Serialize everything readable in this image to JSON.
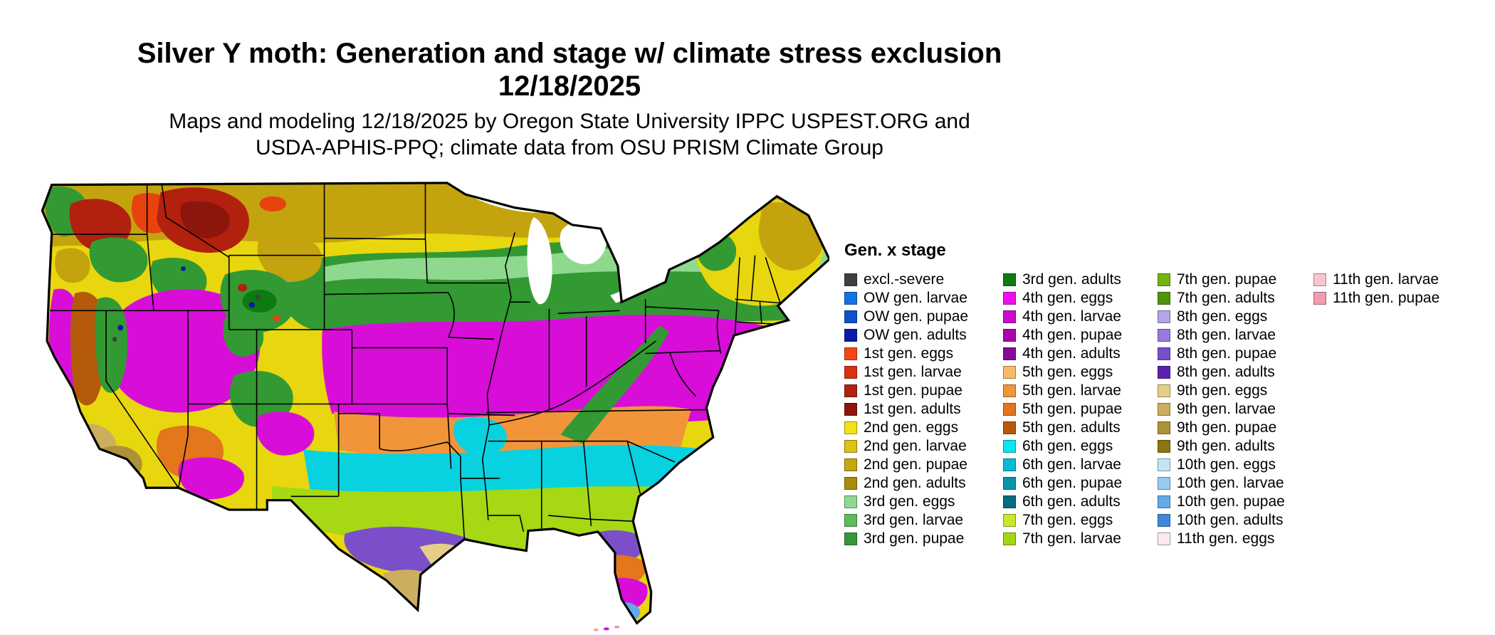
{
  "title": {
    "line1": "Silver Y moth: Generation and stage w/ climate stress exclusion",
    "line2": "12/18/2025"
  },
  "subtitle": {
    "line1": "Maps and modeling 12/18/2025 by Oregon State University IPPC USPEST.ORG and",
    "line2": "USDA-APHIS-PPQ; climate data from OSU PRISM Climate Group"
  },
  "legend": {
    "title": "Gen. x stage",
    "columns": [
      [
        {
          "label": "excl.-severe",
          "color": "#3f3f3f"
        },
        {
          "label": "OW gen. larvae",
          "color": "#1473e6"
        },
        {
          "label": "OW gen. pupae",
          "color": "#0b52cc"
        },
        {
          "label": "OW gen. adults",
          "color": "#0a1ba8"
        },
        {
          "label": "1st gen. eggs",
          "color": "#f44611"
        },
        {
          "label": "1st gen. larvae",
          "color": "#da2f10"
        },
        {
          "label": "1st gen. pupae",
          "color": "#b2200e"
        },
        {
          "label": "1st gen. adults",
          "color": "#8c150c"
        },
        {
          "label": "2nd gen. eggs",
          "color": "#f3e214"
        },
        {
          "label": "2nd gen. larvae",
          "color": "#dfc112"
        },
        {
          "label": "2nd gen. pupae",
          "color": "#c5a70e"
        },
        {
          "label": "2nd gen. adults",
          "color": "#a68d0a"
        },
        {
          "label": "3rd gen. eggs",
          "color": "#90d890"
        },
        {
          "label": "3rd gen. larvae",
          "color": "#5dbb5d"
        },
        {
          "label": "3rd gen. pupae",
          "color": "#349934"
        }
      ],
      [
        {
          "label": "3rd gen. adults",
          "color": "#0f7a0f"
        },
        {
          "label": "4th gen. eggs",
          "color": "#ee0fee"
        },
        {
          "label": "4th gen. larvae",
          "color": "#cc0bcc"
        },
        {
          "label": "4th gen. pupae",
          "color": "#a907a9"
        },
        {
          "label": "4th gen. adults",
          "color": "#850a95"
        },
        {
          "label": "5th gen. eggs",
          "color": "#f8bc67"
        },
        {
          "label": "5th gen. larvae",
          "color": "#f2953a"
        },
        {
          "label": "5th gen. pupae",
          "color": "#e4761b"
        },
        {
          "label": "5th gen. adults",
          "color": "#b5590b"
        },
        {
          "label": "6th gen. eggs",
          "color": "#0ae6ee"
        },
        {
          "label": "6th gen. larvae",
          "color": "#09bcd4"
        },
        {
          "label": "6th gen. pupae",
          "color": "#0795aa"
        },
        {
          "label": "6th gen. adults",
          "color": "#056c7e"
        },
        {
          "label": "7th gen. eggs",
          "color": "#c8e82c"
        },
        {
          "label": "7th gen. larvae",
          "color": "#a3d714"
        }
      ],
      [
        {
          "label": "7th gen. pupae",
          "color": "#72b40e"
        },
        {
          "label": "7th gen. adults",
          "color": "#4f940a"
        },
        {
          "label": "8th gen. eggs",
          "color": "#b4a5e9"
        },
        {
          "label": "8th gen. larvae",
          "color": "#977bdc"
        },
        {
          "label": "8th gen. pupae",
          "color": "#7a4fc9"
        },
        {
          "label": "8th gen. adults",
          "color": "#5b21ad"
        },
        {
          "label": "9th gen. eggs",
          "color": "#e5cf87"
        },
        {
          "label": "9th gen. larvae",
          "color": "#cbae5e"
        },
        {
          "label": "9th gen. pupae",
          "color": "#ad9238"
        },
        {
          "label": "9th gen. adults",
          "color": "#8d7512"
        },
        {
          "label": "10th gen. eggs",
          "color": "#c5e4f8"
        },
        {
          "label": "10th gen. larvae",
          "color": "#95cbf1"
        },
        {
          "label": "10th gen. pupae",
          "color": "#64aae9"
        },
        {
          "label": "10th gen. adults",
          "color": "#3d88da"
        },
        {
          "label": "11th gen. eggs",
          "color": "#fdeaec"
        }
      ],
      [
        {
          "label": "11th gen. larvae",
          "color": "#f8c5cf"
        },
        {
          "label": "11th gen. pupae",
          "color": "#f29cb0"
        }
      ]
    ]
  },
  "map_palette": {
    "base_yellow": "#e8d70f",
    "gold": "#c4a40e",
    "green": "#339933",
    "light_green": "#8fd98f",
    "dark_green": "#0f7a0f",
    "magenta": "#d80ed8",
    "orange": "#f2953a",
    "dark_orange": "#e4761b",
    "cyan": "#09d2e0",
    "chartreuse": "#a6d813",
    "violet": "#7a4fc9",
    "tan": "#cbae5e",
    "khaki": "#e5cf87",
    "brown": "#b5590b",
    "brick_red": "#b2200e",
    "maroon": "#8c150c",
    "red_orange": "#e8430f",
    "navy": "#0a1ba8",
    "gray": "#3f3f3f",
    "sky_blue": "#64aae9",
    "pink": "#f29cb0",
    "olive": "#ad9238",
    "white": "#ffffff"
  }
}
